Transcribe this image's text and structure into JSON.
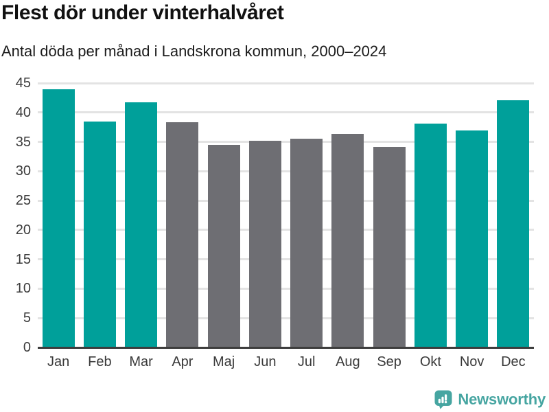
{
  "chart": {
    "title": "Flest dör under vinterhalvåret",
    "subtitle": "Antal döda per månad i Landskrona kommun, 2000–2024"
  },
  "branding": {
    "logo_text": "Newsworthy",
    "logo_color": "#46a5a1"
  },
  "chart_data": {
    "type": "bar",
    "title": "Flest dör under vinterhalvåret",
    "subtitle": "Antal döda per månad i Landskrona kommun, 2000–2024",
    "categories": [
      "Jan",
      "Feb",
      "Mar",
      "Apr",
      "Maj",
      "Jun",
      "Jul",
      "Aug",
      "Sep",
      "Okt",
      "Nov",
      "Dec"
    ],
    "values": [
      44.0,
      38.5,
      41.7,
      38.3,
      34.5,
      35.2,
      35.5,
      36.4,
      34.1,
      38.1,
      36.9,
      42.1
    ],
    "bar_colors": [
      "teal",
      "teal",
      "teal",
      "gray",
      "gray",
      "gray",
      "gray",
      "gray",
      "gray",
      "teal",
      "teal",
      "teal"
    ],
    "colors": {
      "teal": "#00a09a",
      "gray": "#6e6e73"
    },
    "axis_colors": {
      "gridline": "#e3e3e3",
      "baseline": "#3d3d3d",
      "tick_label": "#3a3a3a"
    },
    "xlabel": "",
    "ylabel": "",
    "ylim": [
      0,
      45
    ],
    "yticks": [
      0,
      5,
      10,
      15,
      20,
      25,
      30,
      35,
      40,
      45
    ],
    "grid": true,
    "legend": false
  }
}
